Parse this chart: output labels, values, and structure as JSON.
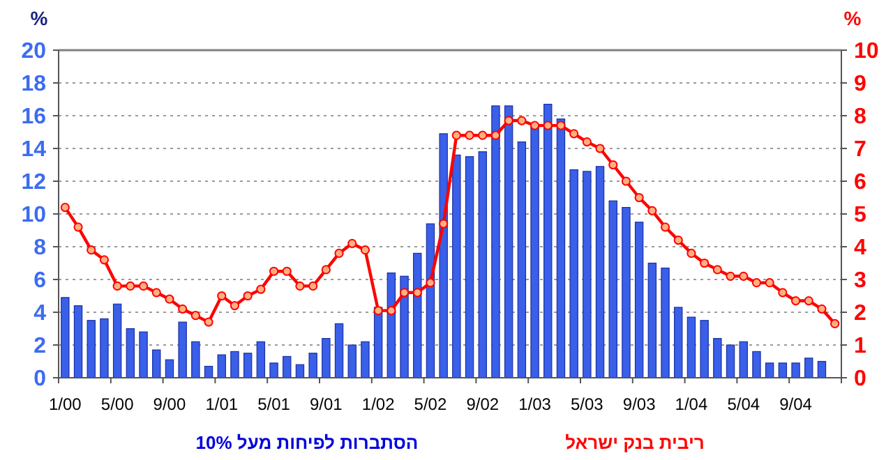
{
  "chart_data": {
    "type": "bar",
    "categories": [
      "1/00",
      null,
      null,
      null,
      "5/00",
      null,
      null,
      null,
      "9/00",
      null,
      null,
      null,
      "1/01",
      null,
      null,
      null,
      "5/01",
      null,
      null,
      null,
      "9/01",
      null,
      null,
      null,
      "1/02",
      null,
      null,
      null,
      "5/02",
      null,
      null,
      null,
      "9/02",
      null,
      null,
      null,
      "1/03",
      null,
      null,
      null,
      "5/03",
      null,
      null,
      null,
      "9/03",
      null,
      null,
      null,
      "1/04",
      null,
      null,
      null,
      "5/04",
      null,
      null,
      null,
      "9/04",
      null,
      null,
      null
    ],
    "series": [
      {
        "name": "הסתברות לפיחות מעל 10%",
        "color": "#3a5fe8",
        "values": [
          4.9,
          4.4,
          3.5,
          3.6,
          4.5,
          3.0,
          2.8,
          1.7,
          1.1,
          3.4,
          2.2,
          0.7,
          1.4,
          1.6,
          1.5,
          2.2,
          0.9,
          1.3,
          0.8,
          1.5,
          2.4,
          3.3,
          2.0,
          2.2,
          4.3,
          6.4,
          6.2,
          7.6,
          9.4,
          14.9,
          13.6,
          13.5,
          13.8,
          16.6,
          16.6,
          14.4,
          15.3,
          16.7,
          15.8,
          12.7,
          12.6,
          12.9,
          10.8,
          10.4,
          9.5,
          7.0,
          6.7,
          4.3,
          3.7,
          3.5,
          2.4,
          2.0,
          2.2,
          1.6,
          0.9,
          0.9,
          0.9,
          1.2,
          1.0,
          null
        ]
      },
      {
        "name": "ריבית בנק ישראל",
        "type": "line",
        "axis": "y2",
        "color": "#ff0000",
        "marker": "circle",
        "values": [
          5.2,
          4.6,
          3.9,
          3.6,
          2.8,
          2.8,
          2.8,
          2.6,
          2.4,
          2.1,
          1.9,
          1.7,
          2.5,
          2.2,
          2.5,
          2.7,
          3.25,
          3.25,
          2.8,
          2.8,
          3.3,
          3.8,
          4.1,
          3.9,
          2.05,
          2.05,
          2.6,
          2.6,
          2.9,
          4.7,
          7.4,
          7.4,
          7.4,
          7.4,
          7.85,
          7.85,
          7.7,
          7.7,
          7.7,
          7.45,
          7.2,
          7.0,
          6.5,
          6.0,
          5.5,
          5.1,
          4.6,
          4.2,
          3.8,
          3.5,
          3.3,
          3.1,
          3.1,
          2.9,
          2.9,
          2.6,
          2.35,
          2.35,
          2.1,
          1.65
        ]
      }
    ],
    "ylabel": "%",
    "y2label": "%",
    "ylim": [
      0,
      20
    ],
    "yticks": [
      0,
      2,
      4,
      6,
      8,
      10,
      12,
      14,
      16,
      18,
      20
    ],
    "y2lim": [
      0,
      10
    ],
    "y2ticks": [
      0,
      1,
      2,
      3,
      4,
      5,
      6,
      7,
      8,
      9,
      10
    ],
    "grid": "y",
    "legend": "bottom"
  }
}
